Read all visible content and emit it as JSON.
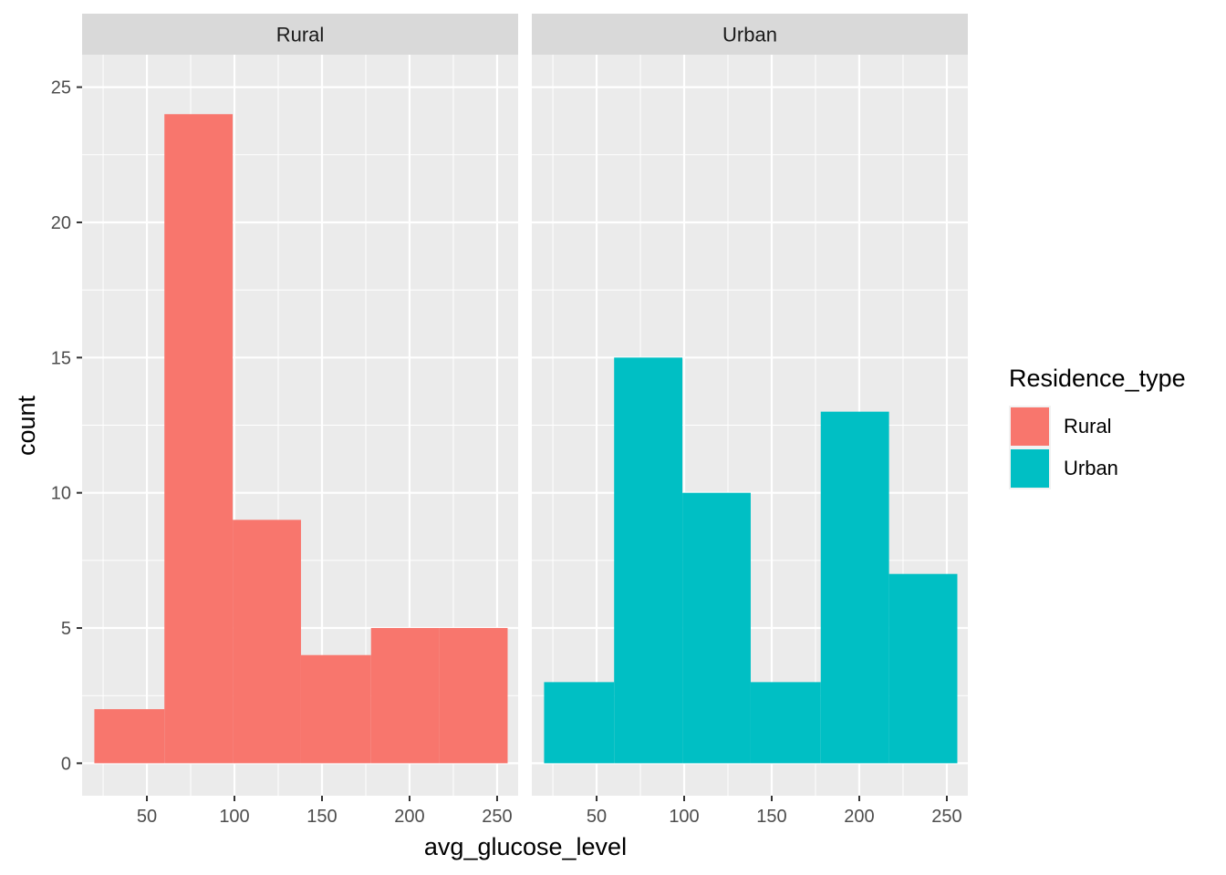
{
  "chart_data": {
    "type": "bar",
    "subtype": "histogram",
    "facet_by": "Residence_type",
    "xlabel": "avg_glucose_level",
    "ylabel": "count",
    "xlim": [
      13,
      262
    ],
    "ylim": [
      -1.2,
      26.2
    ],
    "x_ticks": [
      50,
      100,
      150,
      200,
      250
    ],
    "y_ticks": [
      0,
      5,
      10,
      15,
      20,
      25
    ],
    "bin_edges": [
      20,
      60,
      99,
      138,
      178,
      217,
      256
    ],
    "grid": true,
    "legend": {
      "title": "Residence_type",
      "position": "right",
      "entries": [
        {
          "label": "Rural",
          "color": "#F8766D"
        },
        {
          "label": "Urban",
          "color": "#00BFC4"
        }
      ]
    },
    "panels": [
      {
        "label": "Rural",
        "color": "#F8766D",
        "counts": [
          2,
          24,
          9,
          4,
          5,
          5
        ]
      },
      {
        "label": "Urban",
        "color": "#00BFC4",
        "counts": [
          3,
          15,
          10,
          3,
          13,
          7
        ]
      }
    ]
  }
}
